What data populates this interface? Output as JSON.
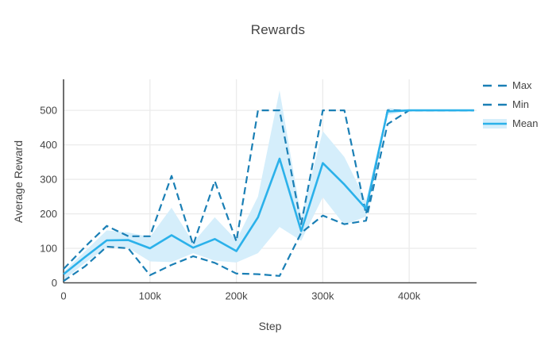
{
  "title": "Rewards",
  "chart_data": {
    "type": "line",
    "title": "Rewards",
    "xlabel": "Step",
    "ylabel": "Average Reward",
    "grid": true,
    "legend_position": "top-right",
    "xlim": [
      0,
      478000
    ],
    "ylim": [
      0,
      590
    ],
    "x_ticks": [
      {
        "value": 0,
        "label": "0"
      },
      {
        "value": 100000,
        "label": "100k"
      },
      {
        "value": 200000,
        "label": "200k"
      },
      {
        "value": 300000,
        "label": "300k"
      },
      {
        "value": 400000,
        "label": "400k"
      }
    ],
    "y_ticks": [
      {
        "value": 0,
        "label": "0"
      },
      {
        "value": 100,
        "label": "100"
      },
      {
        "value": 200,
        "label": "200"
      },
      {
        "value": 300,
        "label": "300"
      },
      {
        "value": 400,
        "label": "400"
      },
      {
        "value": 500,
        "label": "500"
      }
    ],
    "x": [
      0,
      25000,
      50000,
      75000,
      100000,
      125000,
      150000,
      175000,
      200000,
      225000,
      250000,
      275000,
      300000,
      325000,
      350000,
      375000,
      400000,
      425000,
      450000,
      475000
    ],
    "series": [
      {
        "name": "Max",
        "style": "dashed",
        "color": "#1a7fb5",
        "values": [
          40,
          105,
          165,
          135,
          135,
          310,
          110,
          295,
          120,
          500,
          500,
          170,
          500,
          500,
          200,
          500,
          500,
          500,
          500,
          500
        ]
      },
      {
        "name": "Min",
        "style": "dashed",
        "color": "#1a7fb5",
        "values": [
          5,
          48,
          105,
          100,
          22,
          52,
          77,
          58,
          27,
          25,
          20,
          145,
          195,
          170,
          180,
          460,
          500,
          500,
          500,
          500
        ]
      },
      {
        "name": "Mean",
        "style": "solid",
        "color": "#2bb1ea",
        "values": [
          25,
          75,
          123,
          124,
          100,
          138,
          102,
          127,
          92,
          190,
          360,
          150,
          347,
          285,
          215,
          497,
          500,
          500,
          500,
          500
        ],
        "band": {
          "color": "#d5eefb",
          "upper": [
            32,
            92,
            152,
            146,
            133,
            218,
            117,
            190,
            124,
            250,
            558,
            192,
            440,
            365,
            238,
            507,
            501,
            500,
            500,
            500
          ],
          "lower": [
            8,
            58,
            103,
            101,
            62,
            60,
            86,
            64,
            59,
            86,
            162,
            122,
            248,
            168,
            192,
            487,
            499,
            500,
            500,
            500
          ]
        }
      }
    ],
    "colors": {
      "grid": "#ebebeb",
      "axis_line": "#4a4a4a",
      "tick_text": "#444444",
      "background": "#ffffff"
    }
  }
}
